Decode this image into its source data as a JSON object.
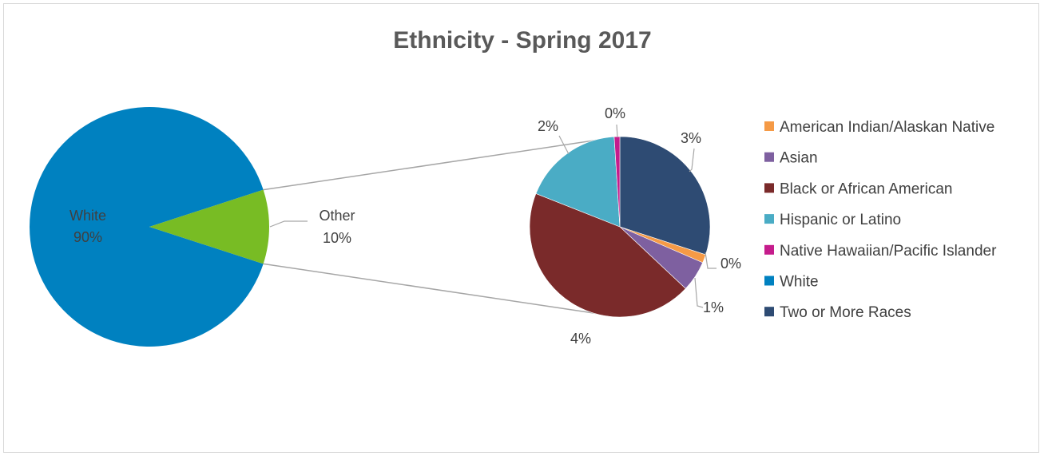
{
  "chart_data": {
    "type": "pie",
    "subtype": "pie-of-pie",
    "title": "Ethnicity - Spring 2017",
    "primary": {
      "slices": [
        {
          "name": "White",
          "value": 90,
          "label_name": "White",
          "label_value": "90%",
          "color": "#0081c0"
        },
        {
          "name": "Other",
          "value": 10,
          "label_name": "Other",
          "label_value": "10%",
          "color": "#78bc24"
        }
      ]
    },
    "secondary": {
      "slices": [
        {
          "name": "Two or More Races",
          "value": 3,
          "label": "3%",
          "color": "#2e4b73"
        },
        {
          "name": "American Indian/Alaskan Native",
          "value": 0.15,
          "label": "0%",
          "color": "#f59a46"
        },
        {
          "name": "Asian",
          "value": 0.55,
          "label": "1%",
          "color": "#7e60a0"
        },
        {
          "name": "Black or African American",
          "value": 4.4,
          "label": "4%",
          "color": "#7a2a2a"
        },
        {
          "name": "Hispanic or Latino",
          "value": 1.8,
          "label": "2%",
          "color": "#4aacc5"
        },
        {
          "name": "Native Hawaiian/Pacific Islander",
          "value": 0.1,
          "label": "0%",
          "color": "#c51c8c"
        }
      ]
    },
    "legend": {
      "position": "right",
      "items": [
        {
          "name": "American Indian/Alaskan Native",
          "color": "#f59a46"
        },
        {
          "name": "Asian",
          "color": "#7e60a0"
        },
        {
          "name": "Black or African American",
          "color": "#7a2a2a"
        },
        {
          "name": "Hispanic or Latino",
          "color": "#4aacc5"
        },
        {
          "name": "Native Hawaiian/Pacific Islander",
          "color": "#c51c8c"
        },
        {
          "name": "White",
          "color": "#0081c0"
        },
        {
          "name": "Two or More Races",
          "color": "#2e4b73"
        }
      ]
    }
  }
}
